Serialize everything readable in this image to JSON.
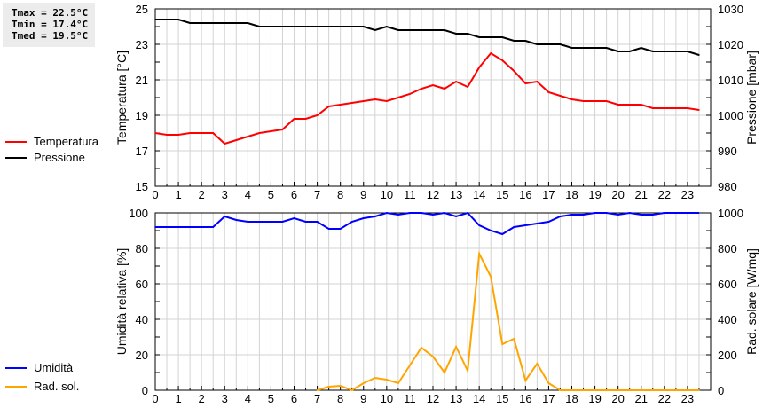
{
  "stats": {
    "tmax": "Tmax = 22.5°C",
    "tmin": "Tmin = 17.4°C",
    "tmed": "Tmed = 19.5°C"
  },
  "colors": {
    "temperature": "#ff0000",
    "pressure": "#000000",
    "humidity": "#0000ff",
    "radiation": "#ffa500",
    "grid": "#d3d3d3"
  },
  "chart_data": [
    {
      "type": "line",
      "xlabel": "",
      "ylabel": "Temperatura [°C]",
      "y2label": "Pressione [mbar]",
      "xlim": [
        0,
        24
      ],
      "ylim": [
        15,
        25
      ],
      "y2lim": [
        980,
        1030
      ],
      "grid": true,
      "legend_placement": "left",
      "xticks": [
        0,
        1,
        2,
        3,
        4,
        5,
        6,
        7,
        8,
        9,
        10,
        11,
        12,
        13,
        14,
        15,
        16,
        17,
        18,
        19,
        20,
        21,
        22,
        23
      ],
      "yticks": [
        15,
        17,
        19,
        21,
        23,
        25
      ],
      "y2ticks": [
        980,
        990,
        1000,
        1010,
        1020,
        1030
      ],
      "x": [
        0,
        0.5,
        1,
        1.5,
        2,
        2.5,
        3,
        3.5,
        4,
        4.5,
        5,
        5.5,
        6,
        6.5,
        7,
        7.5,
        8,
        8.5,
        9,
        9.5,
        10,
        10.5,
        11,
        11.5,
        12,
        12.5,
        13,
        13.5,
        14,
        14.5,
        15,
        15.5,
        16,
        16.5,
        17,
        17.5,
        18,
        18.5,
        19,
        19.5,
        20,
        20.5,
        21,
        21.5,
        22,
        22.5,
        23,
        23.5
      ],
      "series": [
        {
          "name": "Temperatura",
          "axis": "left",
          "values": [
            18.0,
            17.9,
            17.9,
            18.0,
            18.0,
            18.0,
            17.4,
            17.6,
            17.8,
            18.0,
            18.1,
            18.2,
            18.8,
            18.8,
            19.0,
            19.5,
            19.6,
            19.7,
            19.8,
            19.9,
            19.8,
            20.0,
            20.2,
            20.5,
            20.7,
            20.5,
            20.9,
            20.6,
            21.7,
            22.5,
            22.1,
            21.5,
            20.8,
            20.9,
            20.3,
            20.1,
            19.9,
            19.8,
            19.8,
            19.8,
            19.6,
            19.6,
            19.6,
            19.4,
            19.4,
            19.4,
            19.4,
            19.3
          ]
        },
        {
          "name": "Pressione",
          "axis": "right",
          "values": [
            1027,
            1027,
            1027,
            1026,
            1026,
            1026,
            1026,
            1026,
            1026,
            1025,
            1025,
            1025,
            1025,
            1025,
            1025,
            1025,
            1025,
            1025,
            1025,
            1024,
            1025,
            1024,
            1024,
            1024,
            1024,
            1024,
            1023,
            1023,
            1022,
            1022,
            1022,
            1021,
            1021,
            1020,
            1020,
            1020,
            1019,
            1019,
            1019,
            1019,
            1018,
            1018,
            1019,
            1018,
            1018,
            1018,
            1018,
            1017
          ]
        }
      ]
    },
    {
      "type": "line",
      "xlabel": "",
      "ylabel": "Umidità relativa [%]",
      "y2label": "Rad. solare [W/mq]",
      "xlim": [
        0,
        24
      ],
      "ylim": [
        0,
        100
      ],
      "y2lim": [
        0,
        1000
      ],
      "grid": true,
      "legend_placement": "left",
      "xticks": [
        0,
        1,
        2,
        3,
        4,
        5,
        6,
        7,
        8,
        9,
        10,
        11,
        12,
        13,
        14,
        15,
        16,
        17,
        18,
        19,
        20,
        21,
        22,
        23
      ],
      "yticks": [
        0,
        20,
        40,
        60,
        80,
        100
      ],
      "y2ticks": [
        0,
        200,
        400,
        600,
        800,
        1000
      ],
      "x": [
        0,
        0.5,
        1,
        1.5,
        2,
        2.5,
        3,
        3.5,
        4,
        4.5,
        5,
        5.5,
        6,
        6.5,
        7,
        7.5,
        8,
        8.5,
        9,
        9.5,
        10,
        10.5,
        11,
        11.5,
        12,
        12.5,
        13,
        13.5,
        14,
        14.5,
        15,
        15.5,
        16,
        16.5,
        17,
        17.5,
        18,
        18.5,
        19,
        19.5,
        20,
        20.5,
        21,
        21.5,
        22,
        22.5,
        23,
        23.5
      ],
      "series": [
        {
          "name": "Umidità",
          "axis": "left",
          "values": [
            92,
            92,
            92,
            92,
            92,
            92,
            98,
            96,
            95,
            95,
            95,
            95,
            97,
            95,
            95,
            91,
            91,
            95,
            97,
            98,
            100,
            99,
            100,
            100,
            99,
            100,
            98,
            100,
            93,
            90,
            88,
            92,
            93,
            94,
            95,
            98,
            99,
            99,
            100,
            100,
            99,
            100,
            99,
            99,
            100,
            100,
            100,
            100
          ]
        },
        {
          "name": "Rad. sol.",
          "axis": "right",
          "values": [
            null,
            null,
            null,
            null,
            null,
            null,
            null,
            null,
            null,
            null,
            null,
            null,
            null,
            null,
            0,
            20,
            25,
            0,
            40,
            70,
            60,
            40,
            140,
            240,
            190,
            100,
            245,
            110,
            770,
            640,
            260,
            290,
            55,
            150,
            40,
            0,
            0,
            0,
            0,
            0,
            0,
            0,
            0,
            0,
            0,
            0,
            0,
            0
          ]
        }
      ]
    }
  ]
}
